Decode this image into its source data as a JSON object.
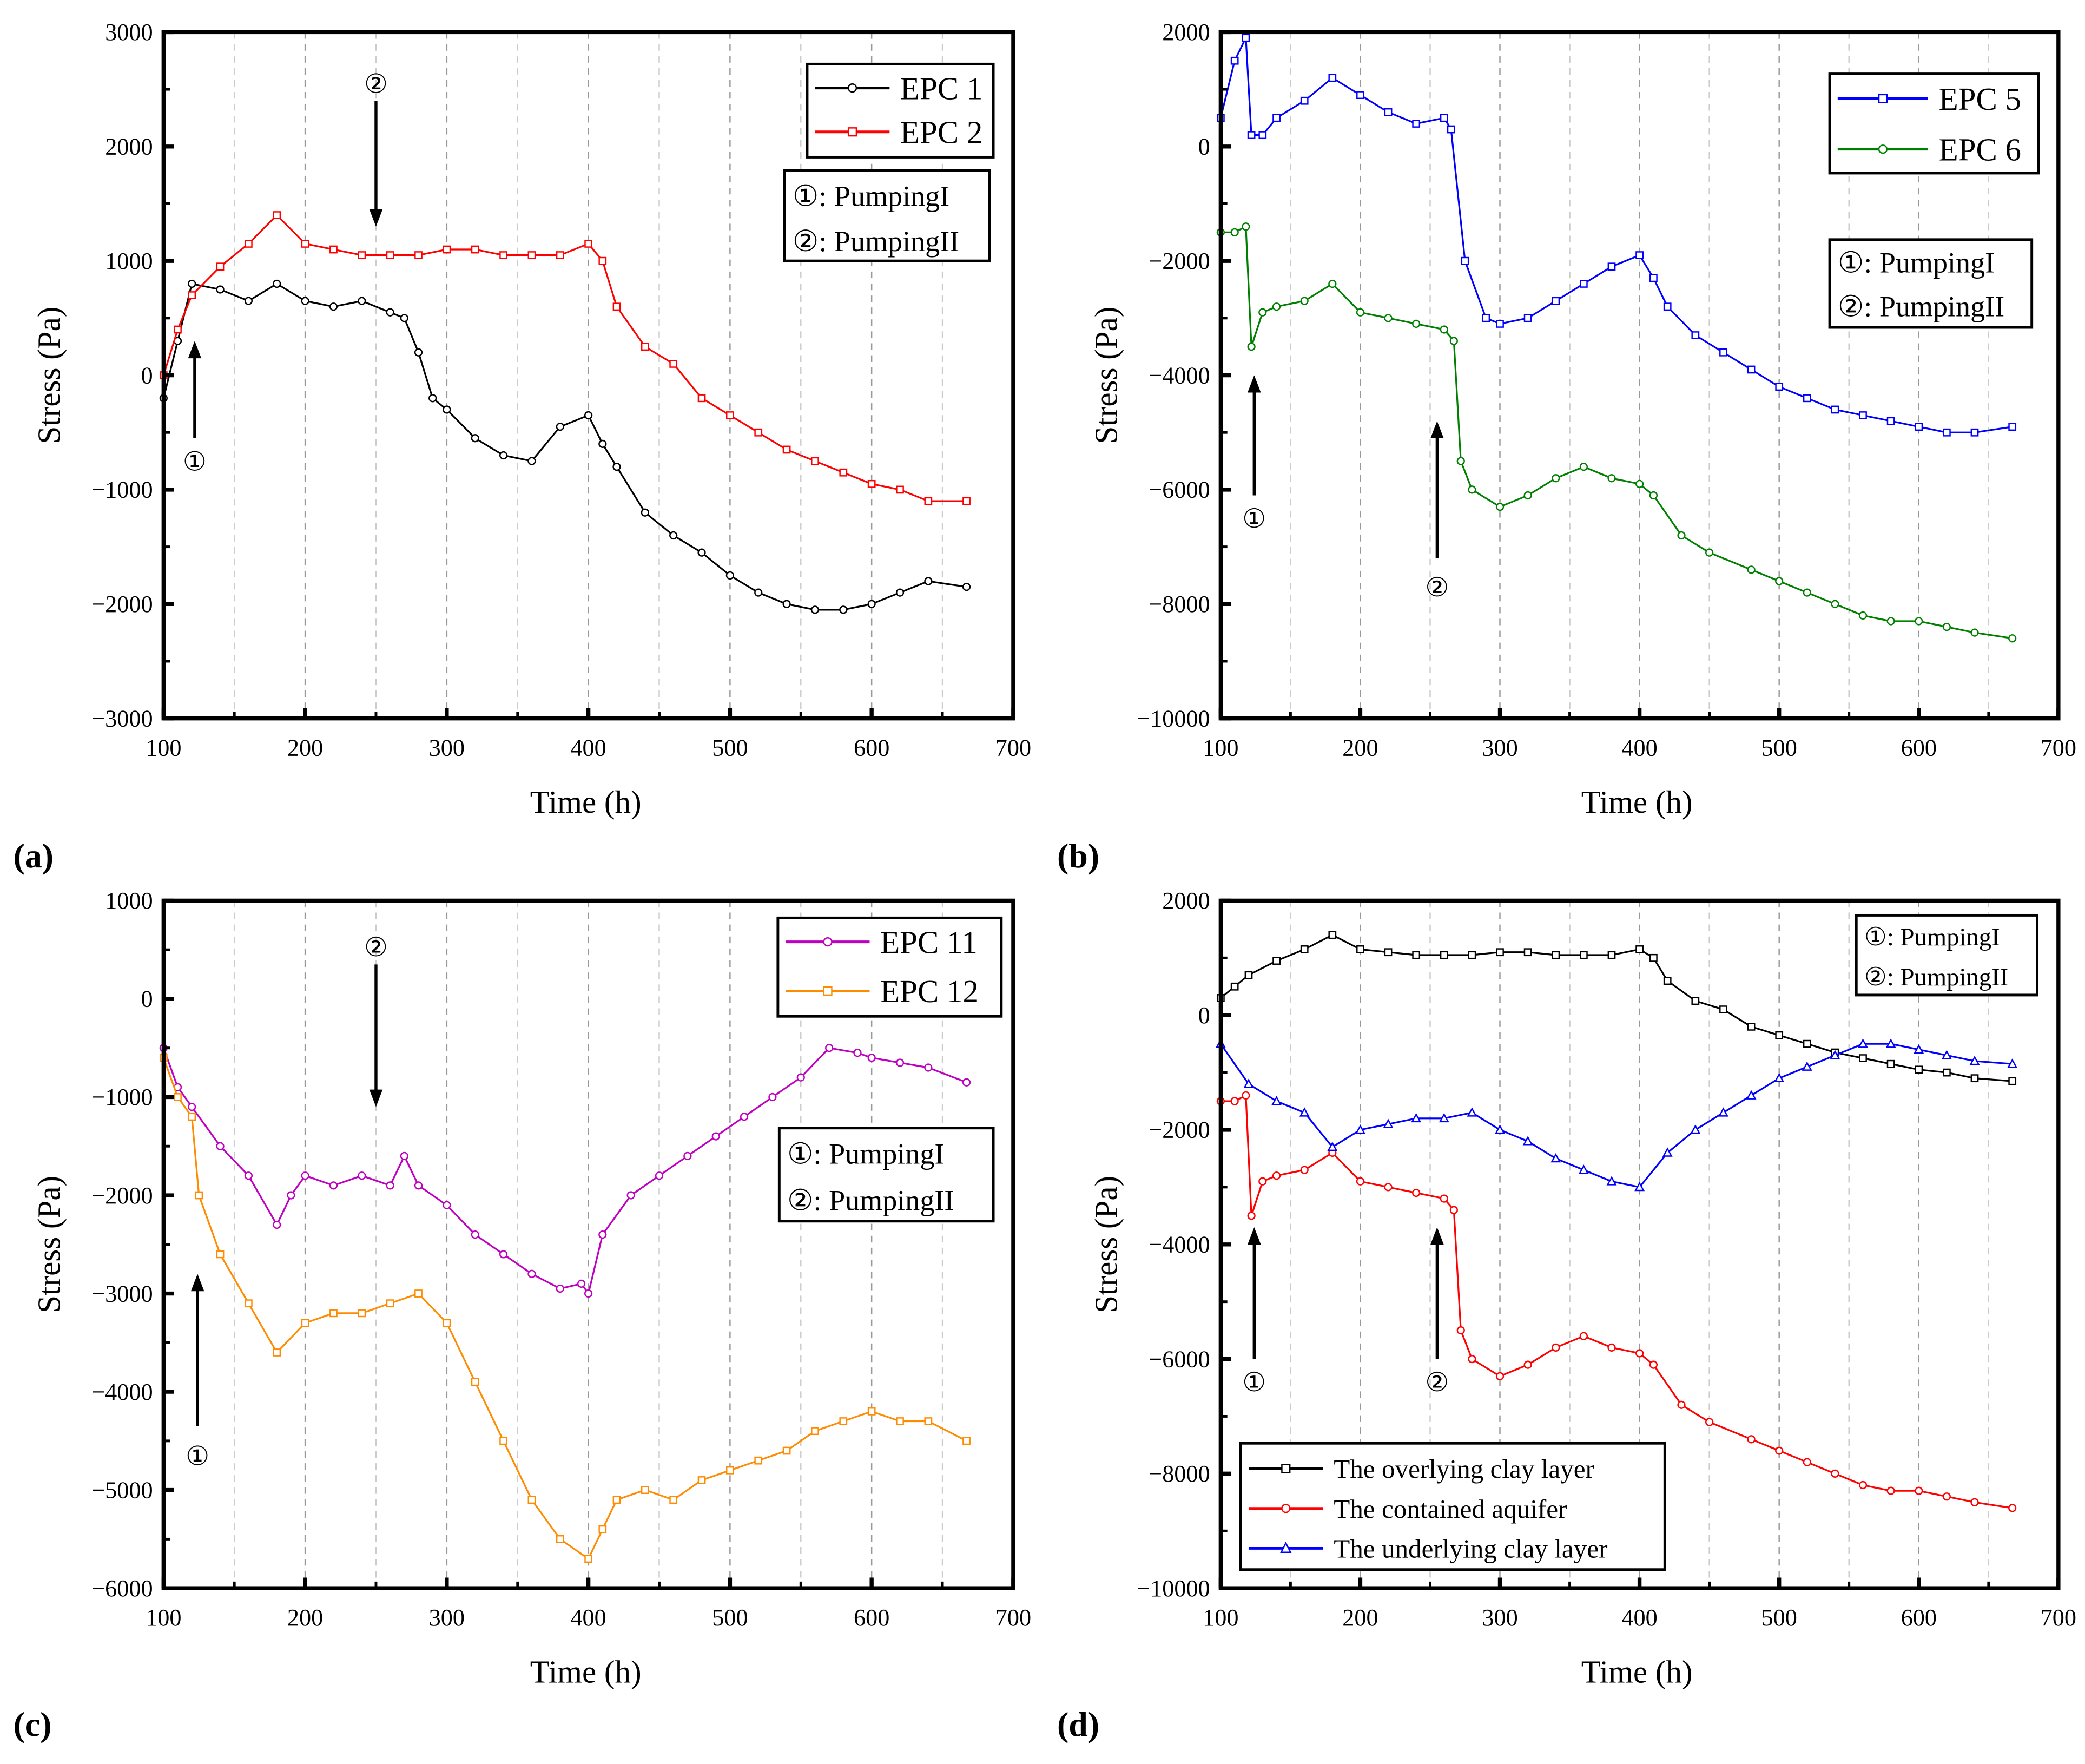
{
  "chart_data": [
    {
      "type": "line",
      "panel_label": "(a)",
      "xlabel": "Time (h)",
      "ylabel": "Stress (Pa)",
      "xlim": [
        100,
        700
      ],
      "ylim": [
        -3000,
        3000
      ],
      "xticks": [
        100,
        200,
        300,
        400,
        500,
        600,
        700
      ],
      "yticks": [
        -3000,
        -2000,
        -1000,
        0,
        1000,
        2000,
        3000
      ],
      "grid": "vertical-dashed",
      "legend_position": "top-right",
      "annotation_legend": [
        "①: PumpingI",
        "②: PumpingII"
      ],
      "annotations": [
        {
          "label": "①",
          "x": 122,
          "arrow_from": -550,
          "arrow_to": 300,
          "label_y": -750,
          "direction": "up"
        },
        {
          "label": "②",
          "x": 250,
          "arrow_from": 2400,
          "arrow_to": 1300,
          "label_y": 2550,
          "direction": "down"
        }
      ],
      "series": [
        {
          "name": "EPC 1",
          "color": "#000000",
          "marker": "circle",
          "x": [
            100,
            110,
            120,
            140,
            160,
            180,
            200,
            220,
            240,
            260,
            270,
            280,
            290,
            300,
            320,
            340,
            360,
            380,
            400,
            410,
            420,
            440,
            460,
            480,
            500,
            520,
            540,
            560,
            580,
            600,
            620,
            640,
            667
          ],
          "y": [
            -200,
            300,
            800,
            750,
            650,
            800,
            650,
            600,
            650,
            550,
            500,
            200,
            -200,
            -300,
            -550,
            -700,
            -750,
            -450,
            -350,
            -600,
            -800,
            -1200,
            -1400,
            -1550,
            -1750,
            -1900,
            -2000,
            -2050,
            -2050,
            -2000,
            -1900,
            -1800,
            -1850
          ]
        },
        {
          "name": "EPC 2",
          "color": "#ff0000",
          "marker": "square",
          "x": [
            100,
            110,
            120,
            140,
            160,
            180,
            200,
            220,
            240,
            260,
            280,
            300,
            320,
            340,
            360,
            380,
            400,
            410,
            420,
            440,
            460,
            480,
            500,
            520,
            540,
            560,
            580,
            600,
            620,
            640,
            667
          ],
          "y": [
            0,
            400,
            700,
            950,
            1150,
            1400,
            1150,
            1100,
            1050,
            1050,
            1050,
            1100,
            1100,
            1050,
            1050,
            1050,
            1150,
            1000,
            600,
            250,
            100,
            -200,
            -350,
            -500,
            -650,
            -750,
            -850,
            -950,
            -1000,
            -1100,
            -1100
          ]
        }
      ]
    },
    {
      "type": "line",
      "panel_label": "(b)",
      "xlabel": "Time (h)",
      "ylabel": "Stress (Pa)",
      "xlim": [
        100,
        700
      ],
      "ylim": [
        -10000,
        2000
      ],
      "xticks": [
        100,
        200,
        300,
        400,
        500,
        600,
        700
      ],
      "yticks": [
        -10000,
        -8000,
        -6000,
        -4000,
        -2000,
        0,
        2000
      ],
      "grid": "vertical-dashed",
      "legend_position": "top-right",
      "annotation_legend": [
        "①: PumpingI",
        "②: PumpingII"
      ],
      "annotations": [
        {
          "label": "①",
          "x": 124,
          "arrow_from": -6100,
          "arrow_to": -4000,
          "label_y": -6500,
          "direction": "up"
        },
        {
          "label": "②",
          "x": 255,
          "arrow_from": -7200,
          "arrow_to": -4800,
          "label_y": -7700,
          "direction": "up"
        }
      ],
      "series": [
        {
          "name": "EPC 5",
          "color": "#0000ff",
          "marker": "square",
          "x": [
            100,
            110,
            118,
            122,
            130,
            140,
            160,
            180,
            200,
            220,
            240,
            260,
            265,
            275,
            290,
            300,
            320,
            340,
            360,
            380,
            400,
            410,
            420,
            440,
            460,
            480,
            500,
            520,
            540,
            560,
            580,
            600,
            620,
            640,
            667
          ],
          "y": [
            500,
            1500,
            1900,
            200,
            200,
            500,
            800,
            1200,
            900,
            600,
            400,
            500,
            300,
            -2000,
            -3000,
            -3100,
            -3000,
            -2700,
            -2400,
            -2100,
            -1900,
            -2300,
            -2800,
            -3300,
            -3600,
            -3900,
            -4200,
            -4400,
            -4600,
            -4700,
            -4800,
            -4900,
            -5000,
            -5000,
            -4900
          ]
        },
        {
          "name": "EPC 6",
          "color": "#008000",
          "marker": "circle",
          "x": [
            100,
            110,
            118,
            122,
            130,
            140,
            160,
            180,
            200,
            220,
            240,
            260,
            267,
            272,
            280,
            300,
            320,
            340,
            360,
            380,
            400,
            410,
            430,
            450,
            480,
            500,
            520,
            540,
            560,
            580,
            600,
            620,
            640,
            667
          ],
          "y": [
            -1500,
            -1500,
            -1400,
            -3500,
            -2900,
            -2800,
            -2700,
            -2400,
            -2900,
            -3000,
            -3100,
            -3200,
            -3400,
            -5500,
            -6000,
            -6300,
            -6100,
            -5800,
            -5600,
            -5800,
            -5900,
            -6100,
            -6800,
            -7100,
            -7400,
            -7600,
            -7800,
            -8000,
            -8200,
            -8300,
            -8300,
            -8400,
            -8500,
            -8600
          ]
        }
      ]
    },
    {
      "type": "line",
      "panel_label": "(c)",
      "xlabel": "Time (h)",
      "ylabel": "Stress (Pa)",
      "xlim": [
        100,
        700
      ],
      "ylim": [
        -6000,
        1000
      ],
      "xticks": [
        100,
        200,
        300,
        400,
        500,
        600,
        700
      ],
      "yticks": [
        -6000,
        -5000,
        -4000,
        -3000,
        -2000,
        -1000,
        0,
        1000
      ],
      "grid": "vertical-dashed",
      "legend_position": "top-right",
      "annotation_legend": [
        "①: PumpingI",
        "②: PumpingII"
      ],
      "annotations": [
        {
          "label": "①",
          "x": 124,
          "arrow_from": -4350,
          "arrow_to": -2800,
          "label_y": -4650,
          "direction": "up"
        },
        {
          "label": "②",
          "x": 250,
          "arrow_from": 350,
          "arrow_to": -1100,
          "label_y": 530,
          "direction": "down"
        }
      ],
      "series": [
        {
          "name": "EPC 11",
          "color": "#c000c0",
          "marker": "circle",
          "x": [
            100,
            110,
            120,
            140,
            160,
            180,
            190,
            200,
            220,
            240,
            260,
            270,
            280,
            300,
            320,
            340,
            360,
            380,
            395,
            400,
            410,
            430,
            450,
            470,
            490,
            510,
            530,
            550,
            570,
            590,
            600,
            620,
            640,
            667
          ],
          "y": [
            -500,
            -900,
            -1100,
            -1500,
            -1800,
            -2300,
            -2000,
            -1800,
            -1900,
            -1800,
            -1900,
            -1600,
            -1900,
            -2100,
            -2400,
            -2600,
            -2800,
            -2950,
            -2900,
            -3000,
            -2400,
            -2000,
            -1800,
            -1600,
            -1400,
            -1200,
            -1000,
            -800,
            -500,
            -550,
            -600,
            -650,
            -700,
            -850
          ]
        },
        {
          "name": "EPC 12",
          "color": "#ff8c00",
          "marker": "square",
          "x": [
            100,
            110,
            120,
            125,
            140,
            160,
            180,
            200,
            220,
            240,
            260,
            280,
            300,
            320,
            340,
            360,
            380,
            400,
            410,
            420,
            440,
            460,
            480,
            500,
            520,
            540,
            560,
            580,
            600,
            620,
            640,
            667
          ],
          "y": [
            -600,
            -1000,
            -1200,
            -2000,
            -2600,
            -3100,
            -3600,
            -3300,
            -3200,
            -3200,
            -3100,
            -3000,
            -3300,
            -3900,
            -4500,
            -5100,
            -5500,
            -5700,
            -5400,
            -5100,
            -5000,
            -5100,
            -4900,
            -4800,
            -4700,
            -4600,
            -4400,
            -4300,
            -4200,
            -4300,
            -4300,
            -4500
          ]
        }
      ]
    },
    {
      "type": "line",
      "panel_label": "(d)",
      "xlabel": "Time (h)",
      "ylabel": "Stress (Pa)",
      "xlim": [
        100,
        700
      ],
      "ylim": [
        -10000,
        2000
      ],
      "xticks": [
        100,
        200,
        300,
        400,
        500,
        600,
        700
      ],
      "yticks": [
        -10000,
        -8000,
        -6000,
        -4000,
        -2000,
        0,
        2000
      ],
      "grid": "vertical-dashed",
      "legend_position": "bottom-left",
      "annotation_legend": [
        "①: PumpingI",
        "②: PumpingII"
      ],
      "annotations": [
        {
          "label": "①",
          "x": 124,
          "arrow_from": -6000,
          "arrow_to": -3700,
          "label_y": -6400,
          "direction": "up"
        },
        {
          "label": "②",
          "x": 255,
          "arrow_from": -6000,
          "arrow_to": -3700,
          "label_y": -6400,
          "direction": "up"
        }
      ],
      "series": [
        {
          "name": "The overlying clay layer",
          "color": "#000000",
          "marker": "square",
          "x": [
            100,
            110,
            120,
            140,
            160,
            180,
            200,
            220,
            240,
            260,
            280,
            300,
            320,
            340,
            360,
            380,
            400,
            410,
            420,
            440,
            460,
            480,
            500,
            520,
            540,
            560,
            580,
            600,
            620,
            640,
            667
          ],
          "y": [
            300,
            500,
            700,
            950,
            1150,
            1400,
            1150,
            1100,
            1050,
            1050,
            1050,
            1100,
            1100,
            1050,
            1050,
            1050,
            1150,
            1000,
            600,
            250,
            100,
            -200,
            -350,
            -500,
            -650,
            -750,
            -850,
            -950,
            -1000,
            -1100,
            -1150
          ]
        },
        {
          "name": "The contained aquifer",
          "color": "#ff0000",
          "marker": "circle",
          "x": [
            100,
            110,
            118,
            122,
            130,
            140,
            160,
            180,
            200,
            220,
            240,
            260,
            267,
            272,
            280,
            300,
            320,
            340,
            360,
            380,
            400,
            410,
            430,
            450,
            480,
            500,
            520,
            540,
            560,
            580,
            600,
            620,
            640,
            667
          ],
          "y": [
            -1500,
            -1500,
            -1400,
            -3500,
            -2900,
            -2800,
            -2700,
            -2400,
            -2900,
            -3000,
            -3100,
            -3200,
            -3400,
            -5500,
            -6000,
            -6300,
            -6100,
            -5800,
            -5600,
            -5800,
            -5900,
            -6100,
            -6800,
            -7100,
            -7400,
            -7600,
            -7800,
            -8000,
            -8200,
            -8300,
            -8300,
            -8400,
            -8500,
            -8600
          ]
        },
        {
          "name": "The underlying clay layer",
          "color": "#0000ff",
          "marker": "triangle",
          "x": [
            100,
            120,
            140,
            160,
            180,
            200,
            220,
            240,
            260,
            280,
            300,
            320,
            340,
            360,
            380,
            400,
            420,
            440,
            460,
            480,
            500,
            520,
            540,
            560,
            580,
            600,
            620,
            640,
            667
          ],
          "y": [
            -500,
            -1200,
            -1500,
            -1700,
            -2300,
            -2000,
            -1900,
            -1800,
            -1800,
            -1700,
            -2000,
            -2200,
            -2500,
            -2700,
            -2900,
            -3000,
            -2400,
            -2000,
            -1700,
            -1400,
            -1100,
            -900,
            -700,
            -500,
            -500,
            -600,
            -700,
            -800,
            -850
          ]
        }
      ]
    }
  ]
}
